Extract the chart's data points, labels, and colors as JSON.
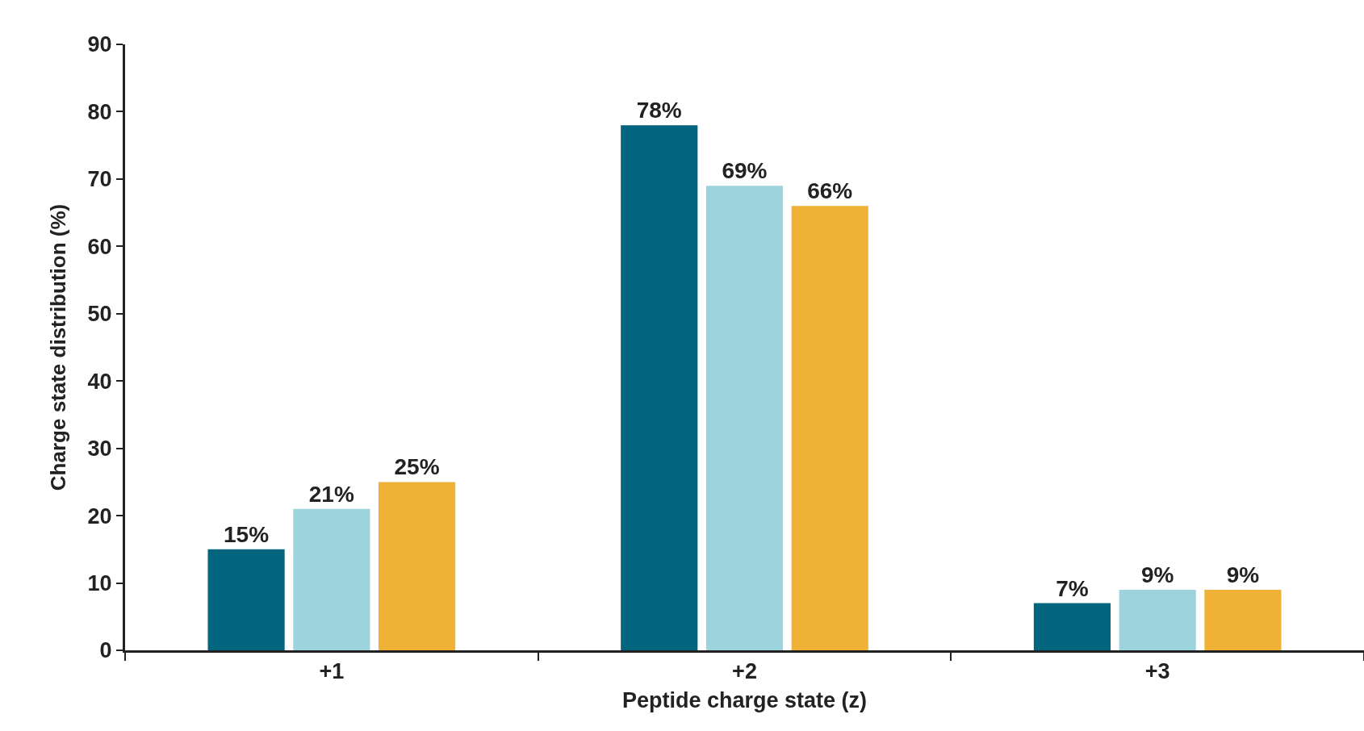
{
  "chart_data": {
    "type": "bar",
    "xlabel": "Peptide charge state (z)",
    "ylabel": "Charge state distribution (%)",
    "categories": [
      "+1",
      "+2",
      "+3"
    ],
    "series": [
      {
        "color": "#03667e",
        "values": [
          15,
          78,
          7
        ],
        "value_labels": [
          "15%",
          "78%",
          "7%"
        ]
      },
      {
        "color": "#9cd3dc",
        "values": [
          21,
          69,
          9
        ],
        "value_labels": [
          "21%",
          "69%",
          "9%"
        ]
      },
      {
        "color": "#efb236",
        "values": [
          25,
          66,
          9
        ],
        "value_labels": [
          "25%",
          "66%",
          "9%"
        ]
      }
    ],
    "ylim": [
      0,
      90
    ],
    "yticks": [
      0,
      10,
      20,
      30,
      40,
      50,
      60,
      70,
      80,
      90
    ],
    "grid": false
  }
}
